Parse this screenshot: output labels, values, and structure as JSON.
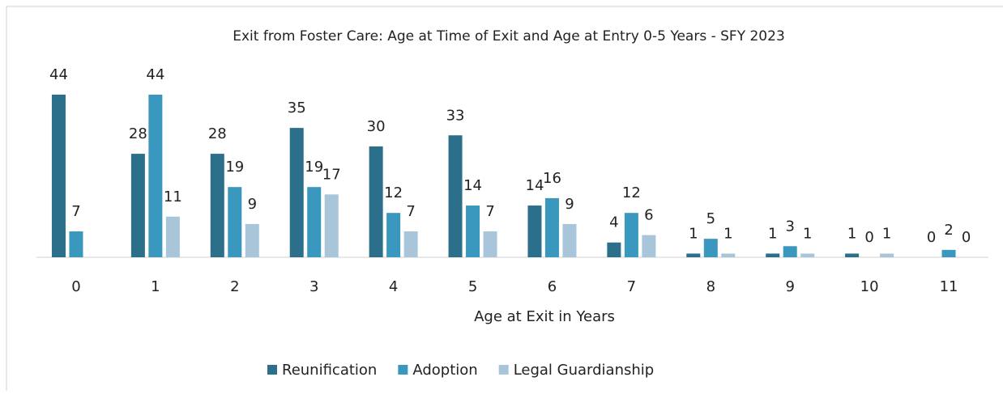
{
  "chart_data": {
    "type": "bar",
    "title": "Exit from Foster Care: Age at Time of Exit and Age at Entry 0-5 Years - SFY 2023",
    "x_label": "Age at Exit in Years",
    "categories": [
      "0",
      "1",
      "2",
      "3",
      "4",
      "5",
      "6",
      "7",
      "8",
      "9",
      "10",
      "11"
    ],
    "series": [
      {
        "name": "Reunification",
        "color": "#2b6f8b",
        "values": [
          44,
          28,
          28,
          35,
          30,
          33,
          14,
          4,
          1,
          1,
          1,
          0
        ]
      },
      {
        "name": "Adoption",
        "color": "#3a97bd",
        "values": [
          7,
          44,
          19,
          19,
          12,
          14,
          16,
          12,
          5,
          3,
          0,
          2
        ]
      },
      {
        "name": "Legal Guardianship",
        "color": "#a8c5da",
        "values": [
          null,
          11,
          9,
          17,
          7,
          7,
          9,
          6,
          1,
          1,
          1,
          0
        ]
      }
    ],
    "legend": "bottom"
  }
}
